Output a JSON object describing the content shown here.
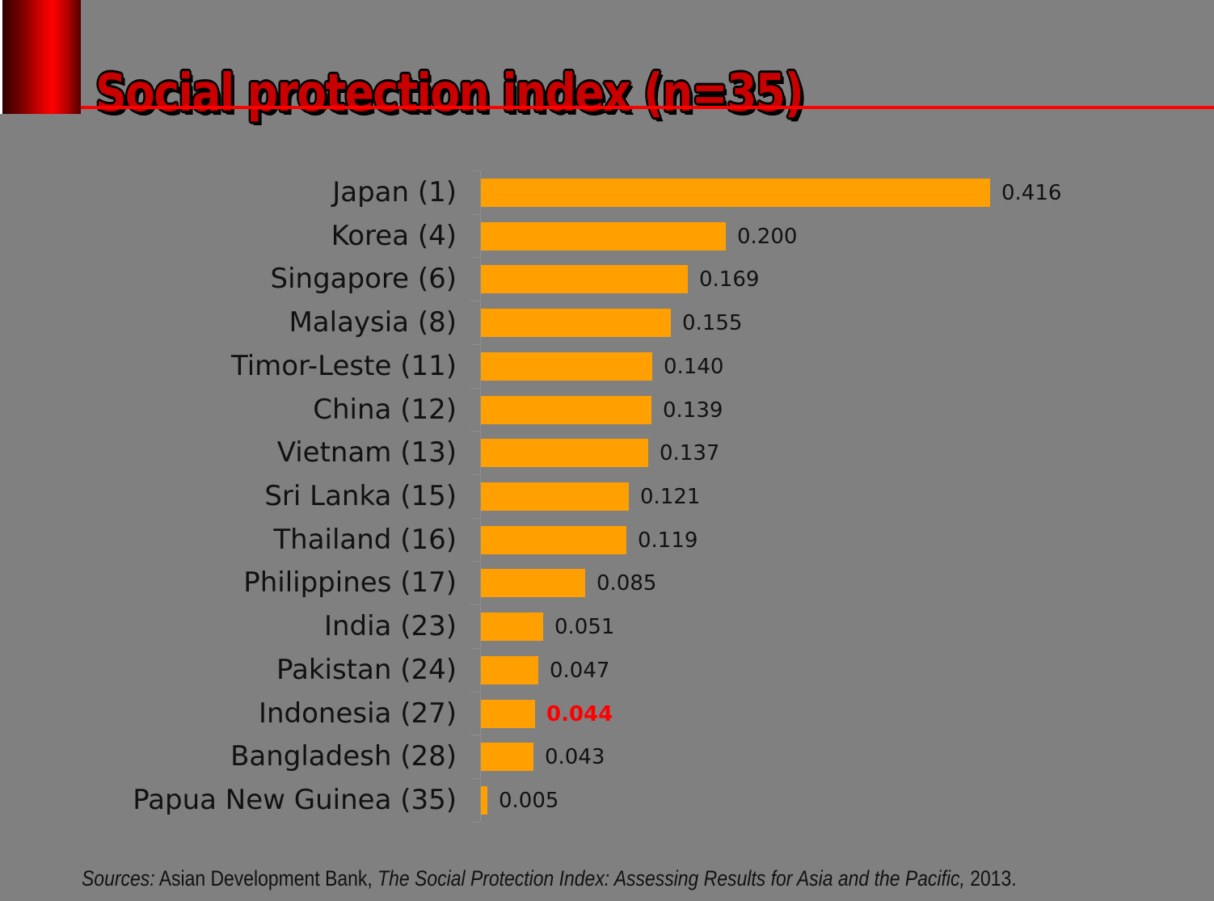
{
  "slide": {
    "title": "Social protection index (n=35)",
    "source": {
      "prefix_italic": "Sources:",
      "middle_regular": " Asian Development Bank, ",
      "work_italic": "The Social Protection Index: Assessing Results for Asia and the Pacific,",
      "suffix_regular": " 2013."
    }
  },
  "colors": {
    "background": "#808080",
    "bar": "#ffa000",
    "title_red": "#c80000",
    "accent_line": "#ff0000",
    "highlight_value": "#ff0000",
    "text": "#111111",
    "axis_gray": "#8f8f8f"
  },
  "chart_data": {
    "type": "bar",
    "orientation": "horizontal",
    "title": "Social protection index (n=35)",
    "xlabel": "",
    "ylabel": "",
    "xlim": [
      0,
      0.416
    ],
    "grid": false,
    "legend": false,
    "categories": [
      "Japan (1)",
      "Korea (4)",
      "Singapore (6)",
      "Malaysia (8)",
      "Timor-Leste (11)",
      "China (12)",
      "Vietnam (13)",
      "Sri Lanka (15)",
      "Thailand (16)",
      "Philippines (17)",
      "India (23)",
      "Pakistan (24)",
      "Indonesia (27)",
      "Bangladesh (28)",
      "Papua New Guinea (35)"
    ],
    "values": [
      0.416,
      0.2,
      0.169,
      0.155,
      0.14,
      0.139,
      0.137,
      0.121,
      0.119,
      0.085,
      0.051,
      0.047,
      0.044,
      0.043,
      0.005
    ],
    "value_label_format": "3-decimals",
    "highlight_index": 12,
    "highlight_category": "Indonesia (27)",
    "highlight_value_text": "0.044"
  }
}
